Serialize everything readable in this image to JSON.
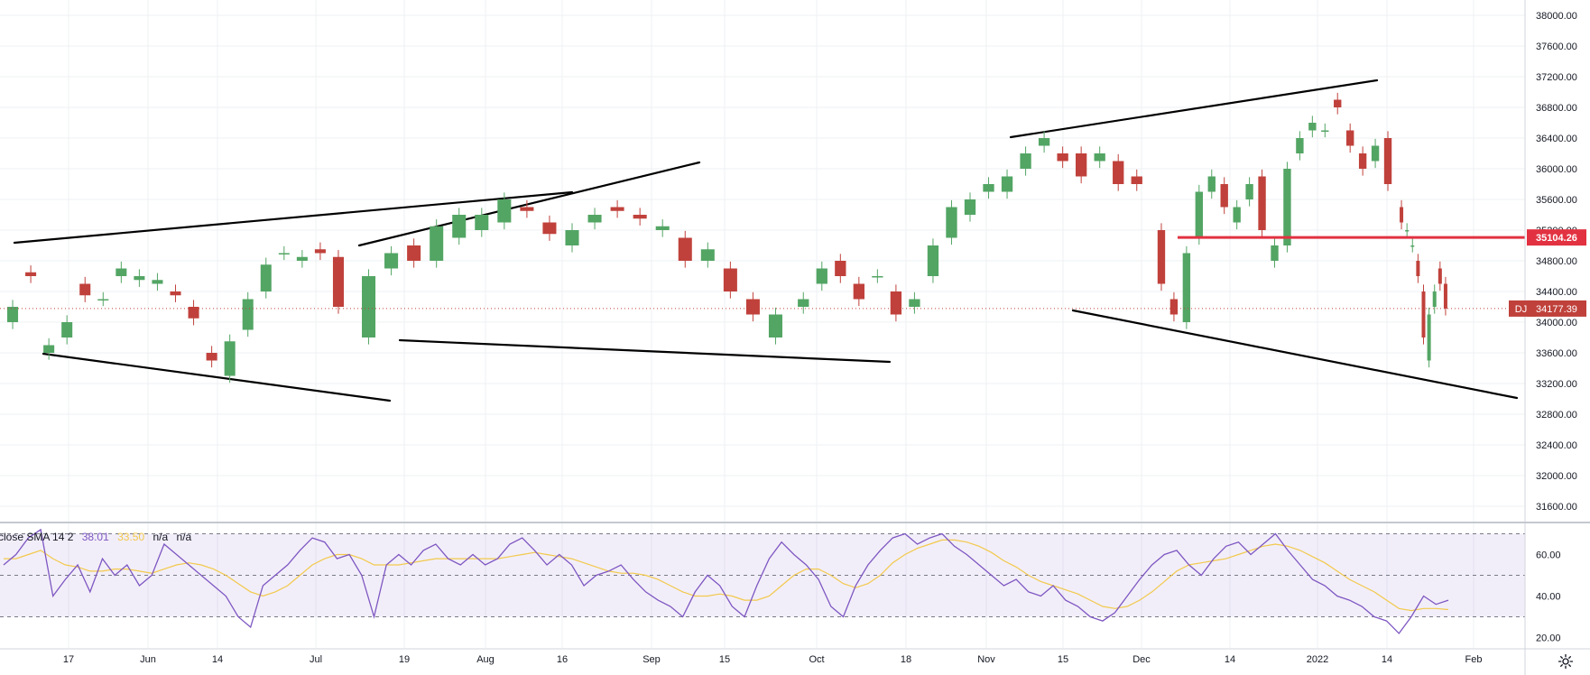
{
  "chart_data": [
    {
      "type": "candlestick",
      "symbol": "DJI",
      "last_price": "34177.39",
      "level_label": "35104.26",
      "price_level": 35104.26,
      "ylim": [
        31400,
        38200
      ],
      "y_ticks": [
        "38000.00",
        "37600.00",
        "37200.00",
        "36800.00",
        "36400.00",
        "36000.00",
        "35600.00",
        "35200.00",
        "34800.00",
        "34400.00",
        "34000.00",
        "33600.00",
        "33200.00",
        "32800.00",
        "32400.00",
        "32000.00",
        "31600.00"
      ],
      "x_ticks": [
        "17",
        "Jun",
        "14",
        "Jul",
        "19",
        "Aug",
        "16",
        "Sep",
        "15",
        "Oct",
        "18",
        "Nov",
        "15",
        "Dec",
        "14",
        "2022",
        "14",
        "Feb"
      ],
      "colors": {
        "up": "#53a564",
        "down": "#c0413b",
        "level_line": "#e23241",
        "last_tag": "#c0413b",
        "trendline": "#000000"
      },
      "segments": [
        {
          "points": [
            [
              34000,
              34200
            ],
            [
              34650,
              34600
            ],
            [
              33600,
              33700
            ],
            [
              33800,
              34000
            ],
            [
              34500,
              34350
            ],
            [
              34300,
              34300
            ],
            [
              34600,
              34700
            ],
            [
              34550,
              34600
            ],
            [
              34500,
              34550
            ],
            [
              34400,
              34350
            ],
            [
              34200,
              34050
            ],
            [
              33600,
              33500
            ],
            [
              33300,
              33750
            ],
            [
              33900,
              34300
            ],
            [
              34400,
              34750
            ],
            [
              34900,
              34900
            ],
            [
              34800,
              34850
            ],
            [
              34950,
              34900
            ],
            [
              34850,
              34200
            ]
          ]
        },
        {
          "points": [
            [
              33800,
              34600
            ],
            [
              34700,
              34900
            ],
            [
              35000,
              34800
            ],
            [
              34800,
              35250
            ],
            [
              35100,
              35400
            ],
            [
              35200,
              35400
            ],
            [
              35300,
              35600
            ],
            [
              35500,
              35450
            ],
            [
              35300,
              35150
            ],
            [
              35000,
              35200
            ],
            [
              35300,
              35400
            ],
            [
              35500,
              35450
            ],
            [
              35400,
              35350
            ],
            [
              35200,
              35250
            ],
            [
              35100,
              34800
            ],
            [
              34800,
              34950
            ],
            [
              34700,
              34400
            ],
            [
              34300,
              34100
            ],
            [
              33800,
              34100
            ]
          ]
        },
        {
          "points": [
            [
              34200,
              34300
            ],
            [
              34500,
              34700
            ],
            [
              34800,
              34600
            ],
            [
              34500,
              34300
            ],
            [
              34600,
              34600
            ],
            [
              34400,
              34100
            ],
            [
              34200,
              34300
            ],
            [
              34600,
              35000
            ],
            [
              35100,
              35500
            ],
            [
              35400,
              35600
            ],
            [
              35700,
              35800
            ],
            [
              35700,
              35900
            ],
            [
              36000,
              36200
            ],
            [
              36300,
              36400
            ],
            [
              36200,
              36100
            ],
            [
              36200,
              35900
            ],
            [
              36100,
              36200
            ],
            [
              36100,
              35800
            ],
            [
              35900,
              35800
            ]
          ]
        },
        {
          "points": [
            [
              35200,
              34500
            ],
            [
              34300,
              34100
            ],
            [
              34000,
              34900
            ],
            [
              35100,
              35700
            ],
            [
              35700,
              35900
            ],
            [
              35800,
              35500
            ],
            [
              35300,
              35500
            ],
            [
              35600,
              35800
            ],
            [
              35900,
              35200
            ],
            [
              34800,
              35000
            ],
            [
              35000,
              36000
            ],
            [
              36200,
              36400
            ],
            [
              36500,
              36600
            ],
            [
              36500,
              36500
            ],
            [
              36900,
              36800
            ],
            [
              36500,
              36300
            ],
            [
              36200,
              36000
            ],
            [
              36100,
              36300
            ],
            [
              36400,
              35800
            ]
          ]
        },
        {
          "points": [
            [
              35500,
              35300
            ],
            [
              35200,
              35200
            ],
            [
              35000,
              35000
            ],
            [
              34800,
              34600
            ],
            [
              34400,
              33800
            ],
            [
              33500,
              34100
            ],
            [
              34200,
              34400
            ],
            [
              34700,
              34500
            ],
            [
              34500,
              34177.39
            ]
          ]
        }
      ],
      "rsi": {
        "label": "close SMA 14 2",
        "rsi_value": "38.01",
        "sma_value": "33.50",
        "na1": "n/a",
        "na2": "n/a",
        "levels": [
          70,
          50,
          30
        ],
        "ylim": [
          15,
          75
        ],
        "y_ticks": [
          "60.00",
          "40.00",
          "20.00"
        ],
        "rsi_series": [
          55,
          60,
          68,
          72,
          40,
          48,
          55,
          42,
          58,
          50,
          55,
          45,
          50,
          65,
          60,
          55,
          50,
          45,
          40,
          30,
          25,
          45,
          50,
          55,
          62,
          68,
          66,
          58,
          60,
          50,
          30,
          55,
          60,
          55,
          62,
          65,
          58,
          55,
          60,
          55,
          58,
          65,
          68,
          62,
          55,
          60,
          55,
          45,
          50,
          52,
          55,
          48,
          42,
          38,
          35,
          30,
          42,
          50,
          45,
          35,
          30,
          45,
          58,
          66,
          60,
          55,
          48,
          35,
          30,
          45,
          55,
          62,
          68,
          70,
          65,
          68,
          70,
          64,
          60,
          55,
          50,
          45,
          48,
          42,
          40,
          45,
          38,
          35,
          30,
          28,
          32,
          40,
          48,
          55,
          60,
          62,
          55,
          50,
          58,
          64,
          66,
          60,
          65,
          70,
          62,
          55,
          48,
          45,
          40,
          38,
          35,
          30,
          28,
          22,
          30,
          40,
          36,
          38
        ],
        "sma_series": [
          58,
          58,
          60,
          62,
          58,
          55,
          54,
          52,
          52,
          53,
          53,
          52,
          51,
          53,
          55,
          56,
          55,
          53,
          50,
          46,
          42,
          40,
          42,
          45,
          50,
          55,
          58,
          60,
          60,
          58,
          55,
          55,
          55,
          56,
          57,
          58,
          58,
          58,
          58,
          58,
          58,
          59,
          60,
          61,
          60,
          59,
          58,
          56,
          54,
          52,
          51,
          51,
          50,
          48,
          45,
          42,
          40,
          40,
          41,
          40,
          38,
          38,
          40,
          45,
          50,
          53,
          53,
          50,
          46,
          44,
          46,
          50,
          56,
          60,
          63,
          65,
          67,
          67,
          66,
          64,
          61,
          57,
          54,
          50,
          47,
          45,
          43,
          41,
          38,
          35,
          34,
          35,
          38,
          42,
          47,
          52,
          55,
          56,
          57,
          58,
          60,
          62,
          64,
          65,
          64,
          62,
          59,
          56,
          52,
          48,
          45,
          42,
          38,
          34,
          33,
          34,
          34,
          33.5
        ]
      }
    }
  ]
}
